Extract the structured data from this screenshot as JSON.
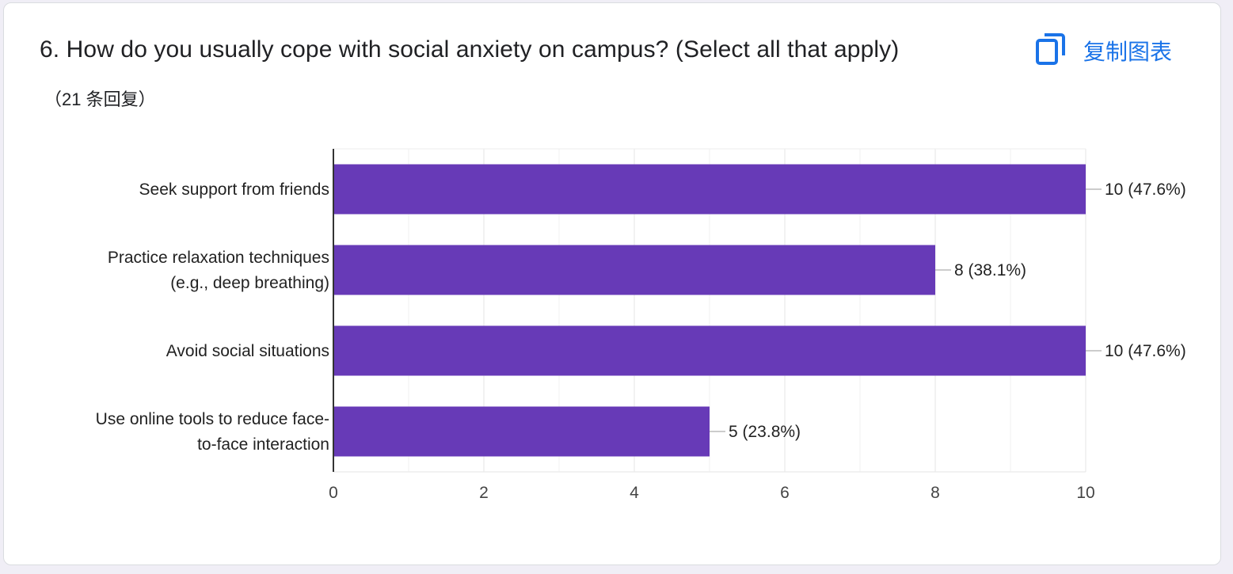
{
  "question": {
    "title": "6. How do you usually cope with social anxiety on campus? (Select all that apply)",
    "responses": "（21 条回复）"
  },
  "toolbar": {
    "copy_label": "复制图表",
    "copy_icon": "copy-icon"
  },
  "colors": {
    "bar": "#673ab7",
    "accent": "#1a73e8"
  },
  "chart_data": {
    "type": "bar",
    "orientation": "horizontal",
    "categories": [
      [
        "Seek support from friends"
      ],
      [
        "Practice relaxation techniques",
        "(e.g., deep breathing)"
      ],
      [
        "Avoid social situations"
      ],
      [
        "Use online tools to reduce face-",
        "to-face interaction"
      ]
    ],
    "values": [
      10,
      8,
      10,
      5
    ],
    "value_labels": [
      "10 (47.6%)",
      "8 (38.1%)",
      "10 (47.6%)",
      "5 (23.8%)"
    ],
    "xlim": [
      0,
      10
    ],
    "xticks": [
      0,
      2,
      4,
      6,
      8,
      10
    ],
    "grid": true
  }
}
